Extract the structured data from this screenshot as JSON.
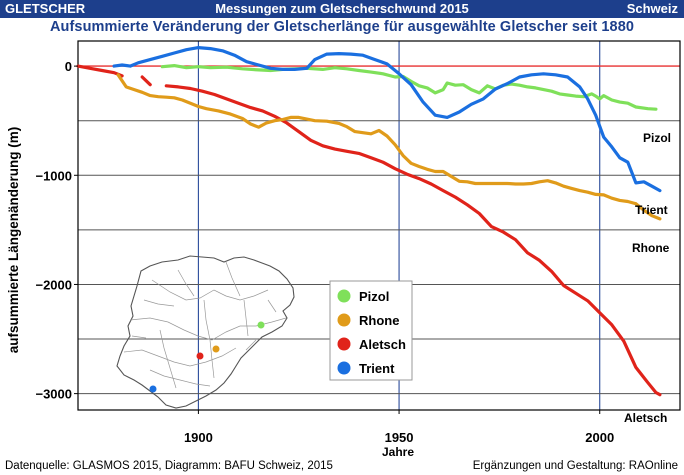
{
  "header": {
    "left": "GLETSCHER",
    "center": "Messungen zum Gletscherschwund 2015",
    "right": "Schweiz"
  },
  "title": "Aufsummierte Veränderung der Gletscherlänge für ausgewählte Gletscher seit 1880",
  "footer": {
    "left": "Datenquelle: GLASMOS 2015, Diagramm: BAFU Schweiz, 2015",
    "right": "Ergänzungen und Gestaltung: RAOnline"
  },
  "colors": {
    "brand": "#1d3f8c",
    "pizol": "#7fe05a",
    "rhone": "#e09b1a",
    "aletsch": "#e0231a",
    "trient": "#1a6fe0",
    "zero_line": "#e83030"
  },
  "chart_data": {
    "type": "line",
    "xlabel": "Jahre",
    "ylabel": "aufsummierte Längenänderung (m)",
    "xlim": [
      1870,
      2020
    ],
    "ylim": [
      -3150,
      230
    ],
    "x_ticks": [
      1900,
      1950,
      2000
    ],
    "y_ticks": [
      0,
      -1000,
      -2000,
      -3000
    ],
    "y_tick_labels": [
      "0",
      "−1000",
      "−2000",
      "−3000"
    ],
    "grid": true,
    "legend_position": "center-left",
    "series": [
      {
        "name": "Pizol",
        "color_key": "pizol",
        "end_label": "Pizol",
        "segments": [
          [
            [
              1891,
              -5
            ],
            [
              1894,
              5
            ],
            [
              1897,
              -15
            ],
            [
              1900,
              -5
            ],
            [
              1903,
              -15
            ],
            [
              1907,
              -10
            ],
            [
              1911,
              -25
            ],
            [
              1915,
              -35
            ],
            [
              1918,
              -40
            ],
            [
              1921,
              -30
            ],
            [
              1924,
              -25
            ],
            [
              1927,
              -20
            ],
            [
              1931,
              -30
            ],
            [
              1934,
              -15
            ],
            [
              1937,
              -25
            ],
            [
              1940,
              -40
            ],
            [
              1943,
              -55
            ],
            [
              1946,
              -70
            ],
            [
              1949,
              -100
            ],
            [
              1951,
              -95
            ],
            [
              1953,
              -140
            ],
            [
              1955,
              -180
            ],
            [
              1957,
              -200
            ],
            [
              1959,
              -245
            ],
            [
              1961,
              -215
            ],
            [
              1962,
              -155
            ],
            [
              1964,
              -175
            ],
            [
              1966,
              -170
            ],
            [
              1968,
              -215
            ],
            [
              1970,
              -245
            ],
            [
              1972,
              -180
            ],
            [
              1974,
              -210
            ],
            [
              1976,
              -175
            ],
            [
              1978,
              -165
            ],
            [
              1980,
              -175
            ],
            [
              1982,
              -190
            ],
            [
              1984,
              -200
            ],
            [
              1986,
              -215
            ],
            [
              1988,
              -230
            ],
            [
              1990,
              -255
            ],
            [
              1992,
              -265
            ],
            [
              1994,
              -275
            ],
            [
              1996,
              -280
            ],
            [
              1998,
              -255
            ],
            [
              1999,
              -275
            ],
            [
              2000,
              -300
            ],
            [
              2001,
              -270
            ],
            [
              2003,
              -310
            ],
            [
              2005,
              -330
            ],
            [
              2007,
              -340
            ],
            [
              2009,
              -375
            ],
            [
              2012,
              -390
            ],
            [
              2014,
              -395
            ]
          ]
        ]
      },
      {
        "name": "Rhone",
        "color_key": "rhone",
        "end_label": "Rhone",
        "segments": [
          [
            [
              1880,
              -80
            ],
            [
              1882,
              -190
            ],
            [
              1884,
              -215
            ],
            [
              1886,
              -240
            ],
            [
              1888,
              -270
            ],
            [
              1890,
              -280
            ],
            [
              1892,
              -285
            ],
            [
              1894,
              -290
            ],
            [
              1896,
              -310
            ],
            [
              1898,
              -340
            ],
            [
              1900,
              -370
            ],
            [
              1902,
              -390
            ],
            [
              1905,
              -410
            ],
            [
              1908,
              -440
            ],
            [
              1911,
              -480
            ],
            [
              1913,
              -530
            ],
            [
              1915,
              -560
            ],
            [
              1917,
              -520
            ],
            [
              1919,
              -500
            ],
            [
              1921,
              -490
            ],
            [
              1923,
              -470
            ],
            [
              1925,
              -470
            ],
            [
              1927,
              -485
            ],
            [
              1929,
              -500
            ],
            [
              1932,
              -505
            ],
            [
              1935,
              -525
            ],
            [
              1937,
              -555
            ],
            [
              1939,
              -600
            ],
            [
              1941,
              -610
            ],
            [
              1943,
              -620
            ],
            [
              1945,
              -590
            ],
            [
              1947,
              -640
            ],
            [
              1949,
              -720
            ],
            [
              1951,
              -820
            ],
            [
              1953,
              -890
            ],
            [
              1955,
              -920
            ],
            [
              1957,
              -945
            ],
            [
              1959,
              -965
            ],
            [
              1961,
              -965
            ],
            [
              1963,
              -1010
            ],
            [
              1965,
              -1055
            ],
            [
              1967,
              -1060
            ],
            [
              1969,
              -1075
            ],
            [
              1971,
              -1075
            ],
            [
              1973,
              -1075
            ],
            [
              1975,
              -1075
            ],
            [
              1977,
              -1075
            ],
            [
              1979,
              -1080
            ],
            [
              1981,
              -1080
            ],
            [
              1983,
              -1075
            ],
            [
              1985,
              -1060
            ],
            [
              1987,
              -1050
            ],
            [
              1989,
              -1070
            ],
            [
              1991,
              -1100
            ],
            [
              1993,
              -1120
            ],
            [
              1995,
              -1140
            ],
            [
              1997,
              -1155
            ],
            [
              1999,
              -1175
            ],
            [
              2001,
              -1180
            ],
            [
              2003,
              -1210
            ],
            [
              2005,
              -1230
            ],
            [
              2007,
              -1240
            ],
            [
              2009,
              -1260
            ],
            [
              2011,
              -1320
            ],
            [
              2013,
              -1370
            ],
            [
              2015,
              -1400
            ]
          ]
        ]
      },
      {
        "name": "Aletsch",
        "color_key": "aletsch",
        "end_label": "Aletsch",
        "segments": [
          [
            [
              1870,
              0
            ],
            [
              1873,
              -20
            ],
            [
              1876,
              -40
            ],
            [
              1879,
              -60
            ],
            [
              1881,
              -90
            ]
          ],
          [
            [
              1886,
              -100
            ],
            [
              1888,
              -170
            ]
          ],
          [
            [
              1892,
              -180
            ],
            [
              1895,
              -190
            ],
            [
              1898,
              -205
            ],
            [
              1901,
              -230
            ],
            [
              1904,
              -260
            ],
            [
              1907,
              -300
            ],
            [
              1910,
              -340
            ],
            [
              1913,
              -380
            ],
            [
              1916,
              -410
            ],
            [
              1919,
              -460
            ],
            [
              1922,
              -520
            ],
            [
              1925,
              -600
            ],
            [
              1928,
              -680
            ],
            [
              1931,
              -730
            ],
            [
              1934,
              -760
            ],
            [
              1937,
              -780
            ],
            [
              1940,
              -800
            ],
            [
              1943,
              -840
            ],
            [
              1946,
              -880
            ],
            [
              1949,
              -940
            ],
            [
              1952,
              -990
            ],
            [
              1955,
              -1030
            ],
            [
              1958,
              -1080
            ],
            [
              1961,
              -1140
            ],
            [
              1964,
              -1200
            ],
            [
              1967,
              -1270
            ],
            [
              1970,
              -1350
            ],
            [
              1973,
              -1470
            ],
            [
              1976,
              -1520
            ],
            [
              1979,
              -1590
            ],
            [
              1982,
              -1710
            ],
            [
              1985,
              -1780
            ],
            [
              1988,
              -1880
            ],
            [
              1991,
              -2010
            ],
            [
              1994,
              -2080
            ],
            [
              1997,
              -2150
            ],
            [
              2000,
              -2260
            ],
            [
              2003,
              -2370
            ],
            [
              2006,
              -2520
            ],
            [
              2009,
              -2760
            ],
            [
              2012,
              -2900
            ],
            [
              2014,
              -2990
            ],
            [
              2015,
              -3010
            ]
          ]
        ]
      },
      {
        "name": "Trient",
        "color_key": "trient",
        "end_label": "Trient",
        "segments": [
          [
            [
              1879,
              0
            ],
            [
              1881,
              10
            ],
            [
              1883,
              0
            ],
            [
              1885,
              30
            ],
            [
              1888,
              60
            ],
            [
              1891,
              90
            ],
            [
              1894,
              120
            ],
            [
              1897,
              150
            ],
            [
              1900,
              170
            ],
            [
              1903,
              160
            ],
            [
              1906,
              140
            ],
            [
              1909,
              100
            ],
            [
              1912,
              40
            ],
            [
              1915,
              10
            ],
            [
              1918,
              -20
            ],
            [
              1921,
              -30
            ],
            [
              1924,
              -30
            ],
            [
              1927,
              -20
            ],
            [
              1929,
              60
            ],
            [
              1932,
              110
            ],
            [
              1935,
              115
            ],
            [
              1938,
              110
            ],
            [
              1941,
              100
            ],
            [
              1944,
              60
            ],
            [
              1947,
              20
            ],
            [
              1950,
              -70
            ],
            [
              1953,
              -170
            ],
            [
              1956,
              -330
            ],
            [
              1959,
              -450
            ],
            [
              1962,
              -470
            ],
            [
              1965,
              -420
            ],
            [
              1968,
              -350
            ],
            [
              1971,
              -300
            ],
            [
              1974,
              -210
            ],
            [
              1977,
              -160
            ],
            [
              1980,
              -100
            ],
            [
              1983,
              -80
            ],
            [
              1986,
              -70
            ],
            [
              1989,
              -80
            ],
            [
              1992,
              -100
            ],
            [
              1995,
              -190
            ],
            [
              1997,
              -300
            ],
            [
              1999,
              -450
            ],
            [
              2001,
              -650
            ],
            [
              2003,
              -740
            ],
            [
              2005,
              -840
            ],
            [
              2007,
              -880
            ],
            [
              2009,
              -1070
            ],
            [
              2011,
              -1060
            ],
            [
              2013,
              -1100
            ],
            [
              2015,
              -1140
            ]
          ]
        ]
      }
    ]
  }
}
